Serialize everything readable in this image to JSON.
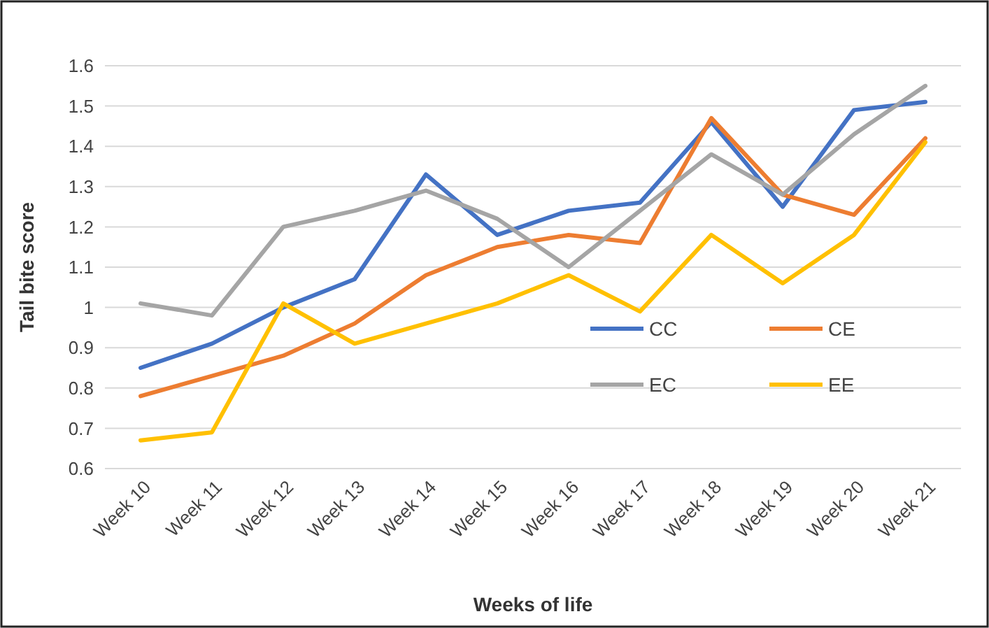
{
  "chart_data": {
    "type": "line",
    "xlabel": "Weeks of life",
    "ylabel": "Tail bite score",
    "categories": [
      "Week 10",
      "Week 11",
      "Week 12",
      "Week 13",
      "Week 14",
      "Week 15",
      "Week 16",
      "Week 17",
      "Week 18",
      "Week 19",
      "Week 20",
      "Week 21"
    ],
    "series": [
      {
        "name": "CC",
        "color": "#4472c4",
        "values": [
          0.85,
          0.91,
          1.0,
          1.07,
          1.33,
          1.18,
          1.24,
          1.26,
          1.46,
          1.25,
          1.49,
          1.51
        ]
      },
      {
        "name": "CE",
        "color": "#ed7d31",
        "values": [
          0.78,
          0.83,
          0.88,
          0.96,
          1.08,
          1.15,
          1.18,
          1.16,
          1.47,
          1.28,
          1.23,
          1.42
        ]
      },
      {
        "name": "EC",
        "color": "#a5a5a5",
        "values": [
          1.01,
          0.98,
          1.2,
          1.24,
          1.29,
          1.22,
          1.1,
          1.24,
          1.38,
          1.28,
          1.43,
          1.55
        ]
      },
      {
        "name": "EE",
        "color": "#ffc000",
        "values": [
          0.67,
          0.69,
          1.01,
          0.91,
          0.96,
          1.01,
          1.08,
          0.99,
          1.18,
          1.06,
          1.18,
          1.41
        ]
      }
    ],
    "ylim": [
      0.6,
      1.6
    ],
    "yticks": [
      0.6,
      0.7,
      0.8,
      0.9,
      1,
      1.1,
      1.2,
      1.3,
      1.4,
      1.5,
      1.6
    ],
    "grid": "y",
    "legend": "right",
    "marker": "none",
    "line_style": "solid"
  }
}
